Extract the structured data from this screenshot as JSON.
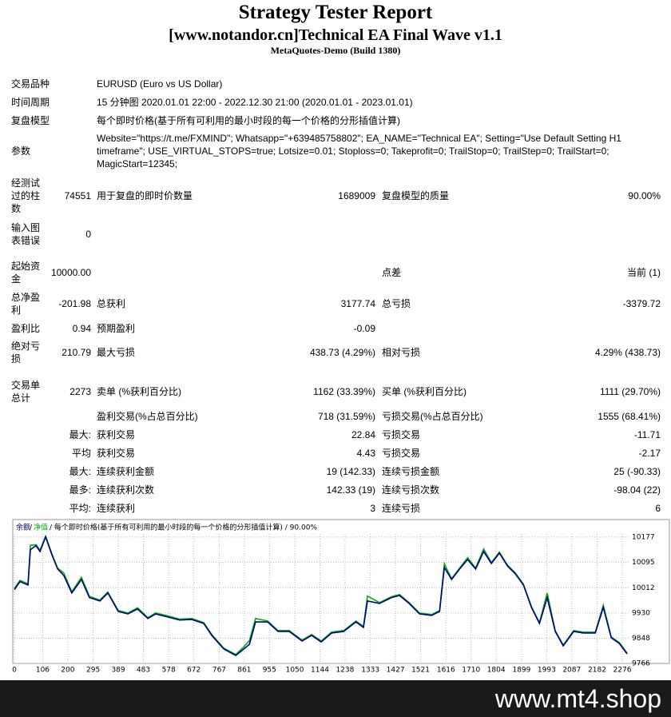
{
  "header": {
    "title": "Strategy Tester Report",
    "subtitle": "[www.notandor.cn]Technical EA Final Wave v1.1",
    "server": "MetaQuotes-Demo (Build 1380)"
  },
  "settings": [
    {
      "label": "交易品种",
      "value": "EURUSD (Euro vs US Dollar)"
    },
    {
      "label": "时间周期",
      "value": "15 分钟图 2020.01.01 22:00 - 2022.12.30 21:00 (2020.01.01 - 2023.01.01)"
    },
    {
      "label": "复盘模型",
      "value": "每个即时价格(基于所有可利用的最小时段的每一个价格的分形插值计算)"
    },
    {
      "label": "参数",
      "value": "Website=\"https://t.me/FXMIND\"; Whatsapp=\"+639485758802\"; EA_NAME=\"Technical EA\"; Setting=\"Use Default Setting H1 timeframe\"; USE_VIRTUAL_STOPS=true; Lotsize=0.01; Stoploss=0; Takeprofit=0; TrailStop=0; TrailStep=0; TrailStart=0; MagicStart=12345;"
    }
  ],
  "results": {
    "rows": [
      {
        "c1": "经测试过的柱数",
        "v1": "74551",
        "c2": "用于复盘的即时价数量",
        "v2": "1689009",
        "c3": "复盘模型的质量",
        "v3": "90.00%"
      },
      {
        "c1": "输入图表错误",
        "v1": "0"
      },
      {
        "c1": "起始资金",
        "v1": "10000.00",
        "c3": "点差",
        "v3": "当前 (1)"
      },
      {
        "c1": "总净盈利",
        "v1": "-201.98",
        "c2": "总获利",
        "v2": "3177.74",
        "c3": "总亏损",
        "v3": "-3379.72"
      },
      {
        "c1": "盈利比",
        "v1": "0.94",
        "c2": "预期盈利",
        "v2": "-0.09"
      },
      {
        "c1": "绝对亏损",
        "v1": "210.79",
        "c2": "最大亏损",
        "v2": "438.73 (4.29%)",
        "c3": "相对亏损",
        "v3": "4.29% (438.73)"
      },
      {
        "c1": "交易单总计",
        "v1": "2273",
        "c2": "卖单 (%获利百分比)",
        "v2": "1162 (33.39%)",
        "c3": "买单 (%获利百分比)",
        "v3": "1111 (29.70%)"
      },
      {
        "c2": "盈利交易(%占总百分比)",
        "v2": "718 (31.59%)",
        "c3": "亏损交易(%占总百分比)",
        "v3": "1555 (68.41%)"
      },
      {
        "v1": "最大:",
        "c2": "获利交易",
        "v2": "22.84",
        "c3": "亏损交易",
        "v3": "-11.71"
      },
      {
        "v1": "平均",
        "c2": "获利交易",
        "v2": "4.43",
        "c3": "亏损交易",
        "v3": "-2.17"
      },
      {
        "v1": "最大:",
        "c2": "连续获利金额",
        "v2": "19 (142.33)",
        "c3": "连续亏损金额",
        "v3": "25 (-90.33)"
      },
      {
        "v1": "最多:",
        "c2": "连续获利次数",
        "v2": "142.33 (19)",
        "c3": "连续亏损次数",
        "v3": "-98.04 (22)"
      },
      {
        "v1": "平均:",
        "c2": "连续获利",
        "v2": "3",
        "c3": "连续亏损",
        "v3": "6"
      }
    ]
  },
  "chart_data": {
    "type": "line",
    "caption": "每个即时价格(基于所有可利用的最小时段的每一个价格的分形插值计算) / 90.00%",
    "x": [
      0,
      21,
      51,
      60,
      81,
      96,
      117,
      141,
      162,
      185,
      215,
      251,
      281,
      320,
      350,
      389,
      425,
      461,
      500,
      529,
      574,
      619,
      664,
      709,
      739,
      784,
      829,
      859,
      880,
      903,
      948,
      987,
      1029,
      1077,
      1113,
      1149,
      1188,
      1233,
      1279,
      1307,
      1322,
      1367,
      1412,
      1442,
      1478,
      1517,
      1562,
      1592,
      1610,
      1637,
      1667,
      1697,
      1727,
      1757,
      1786,
      1816,
      1846,
      1876,
      1906,
      1936,
      1966,
      1995,
      2025,
      2055,
      2094,
      2130,
      2175,
      2205,
      2235,
      2265,
      2294
    ],
    "series": [
      {
        "name": "余额",
        "color": "#00008b",
        "values": [
          10006,
          10032,
          10021,
          10136,
          10149,
          10130,
          10177,
          10118,
          10073,
          10052,
          9995,
          10039,
          9980,
          9969,
          9995,
          9935,
          9927,
          9943,
          9912,
          9927,
          9917,
          9907,
          9909,
          9896,
          9857,
          9813,
          9792,
          9813,
          9828,
          9901,
          9901,
          9870,
          9870,
          9839,
          9857,
          9836,
          9865,
          9870,
          9901,
          9883,
          9969,
          9961,
          9980,
          9987,
          9961,
          9927,
          9922,
          9935,
          10078,
          10039,
          10073,
          10104,
          10073,
          10130,
          10091,
          10125,
          10083,
          10057,
          10021,
          9948,
          9896,
          9980,
          9870,
          9823,
          9870,
          9865,
          9865,
          9948,
          9849,
          9831,
          9797
        ]
      },
      {
        "name": "净值",
        "color": "#00b000",
        "values": [
          10010,
          10036,
          10025,
          10150,
          10152,
          10134,
          10180,
          10121,
          10076,
          10060,
          9999,
          10046,
          9984,
          9972,
          9998,
          9938,
          9930,
          9947,
          9915,
          9930,
          9921,
          9910,
          9912,
          9899,
          9860,
          9816,
          9795,
          9820,
          9840,
          9912,
          9904,
          9873,
          9873,
          9842,
          9860,
          9839,
          9868,
          9873,
          9904,
          9886,
          9985,
          9964,
          9983,
          9990,
          9964,
          9930,
          9925,
          9938,
          10090,
          10042,
          10076,
          10110,
          10076,
          10138,
          10094,
          10128,
          10086,
          10060,
          10024,
          9951,
          9899,
          9995,
          9873,
          9826,
          9873,
          9868,
          9868,
          9955,
          9852,
          9834,
          9800
        ]
      }
    ],
    "xlim": [
      0,
      2303
    ],
    "ylim": [
      9766,
      10187
    ],
    "xticks": [
      0,
      106,
      200,
      295,
      389,
      483,
      578,
      672,
      767,
      861,
      955,
      1050,
      1144,
      1238,
      1333,
      1427,
      1521,
      1616,
      1710,
      1804,
      1899,
      1993,
      2087,
      2182,
      2276
    ],
    "yticks": [
      9766,
      9848,
      9930,
      10012,
      10095,
      10177
    ],
    "grid": true
  },
  "footer": {
    "watermark": "www.mt4.shop"
  }
}
